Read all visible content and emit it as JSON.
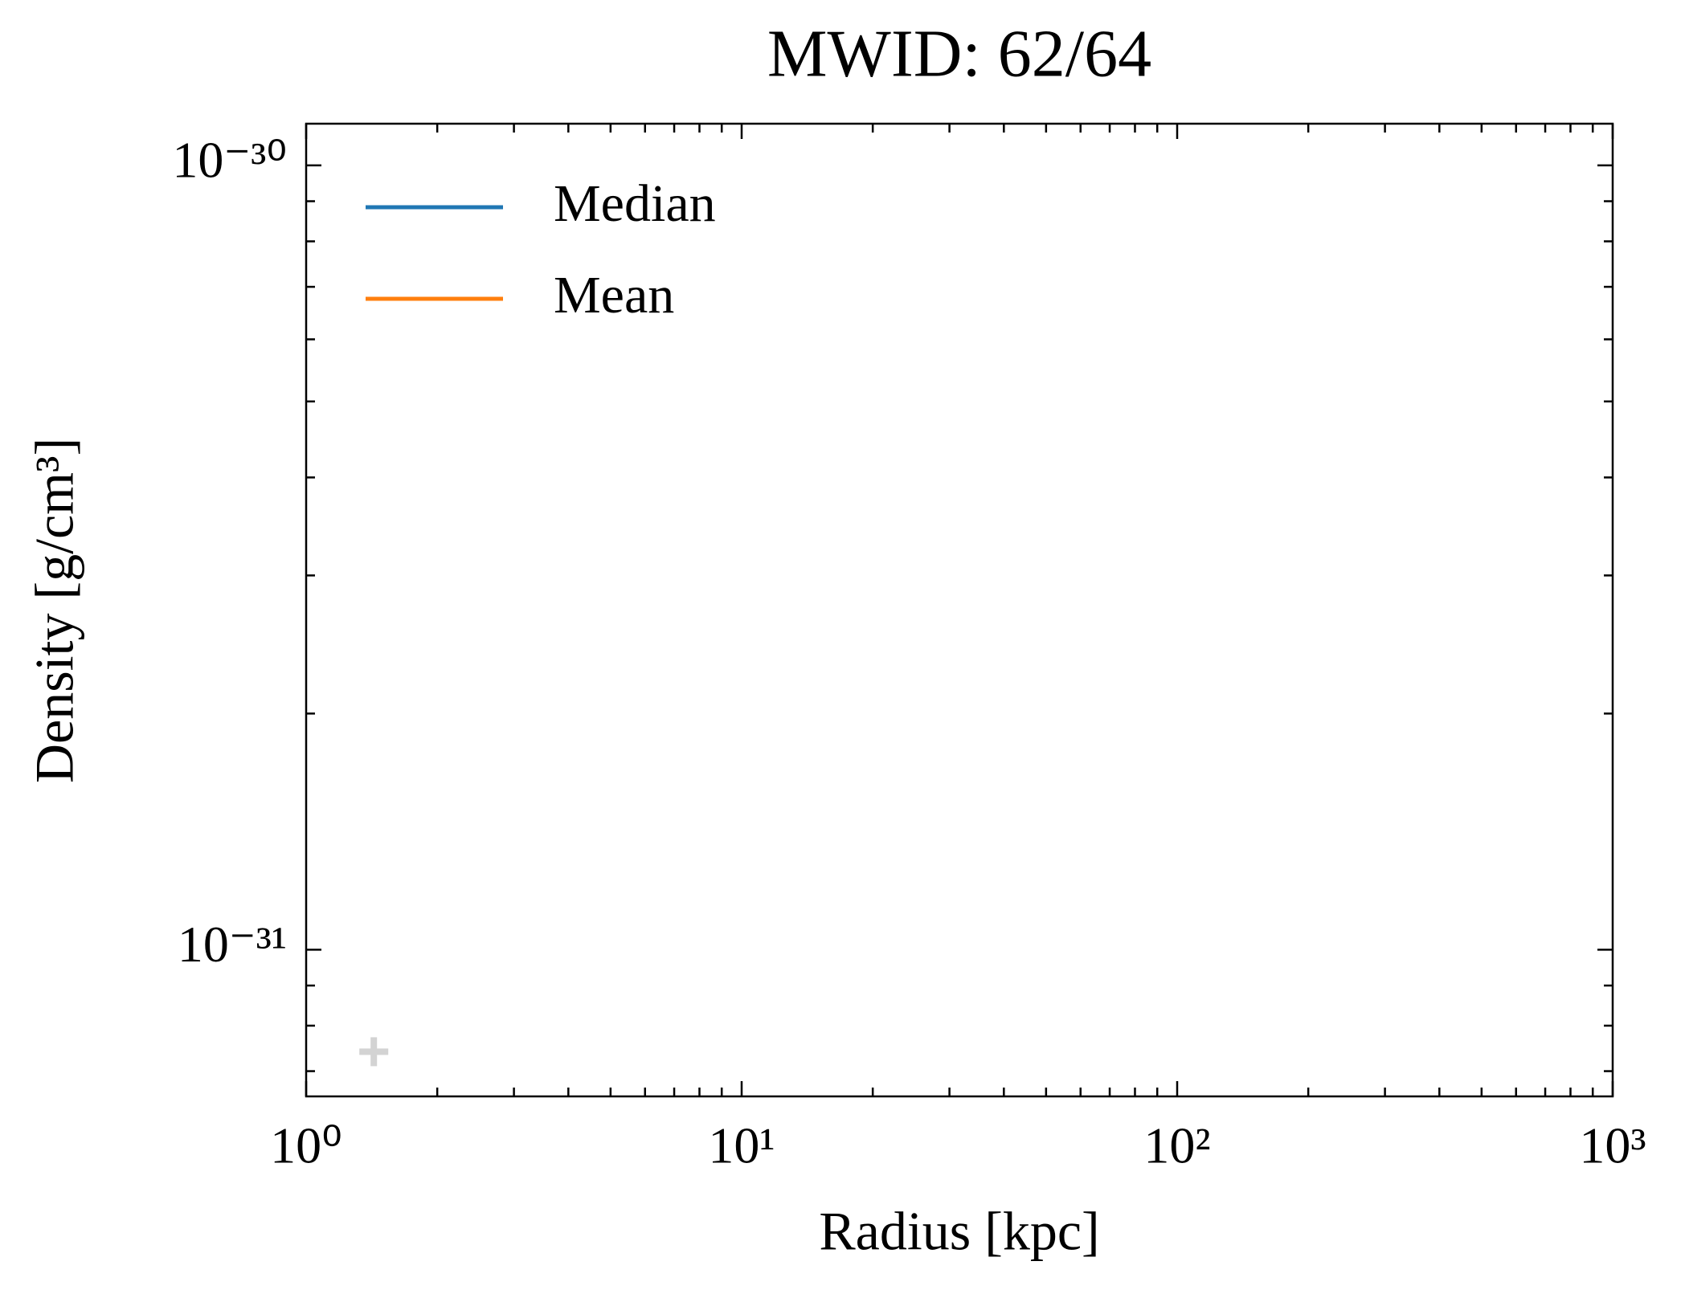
{
  "chart_data": {
    "type": "line",
    "title": "MWID: 62/64",
    "xlabel": "Radius [kpc]",
    "ylabel": "Density [g/cm³]",
    "x": [
      1.43
    ],
    "series": [
      {
        "name": "Median",
        "color": "#1f77b4",
        "values": [
          null
        ]
      },
      {
        "name": "Mean",
        "color": "#ff7f0e",
        "values": [
          null
        ]
      },
      {
        "color": "#d3d3d3",
        "marker": "+",
        "values": [
          7.41e-32
        ]
      }
    ],
    "xscale": "log",
    "yscale": "log",
    "xlim": [
      1,
      1000
    ],
    "ylim": [
      6.5e-32,
      1.13e-30
    ],
    "xticks": [
      {
        "value": 1,
        "label": "10⁰"
      },
      {
        "value": 10,
        "label": "10¹"
      },
      {
        "value": 100,
        "label": "10²"
      },
      {
        "value": 1000,
        "label": "10³"
      }
    ],
    "yticks": [
      {
        "value": 1e-31,
        "label": "10⁻³¹"
      },
      {
        "value": 1e-30,
        "label": "10⁻³⁰"
      }
    ],
    "grid": false,
    "legend": "upper left"
  }
}
